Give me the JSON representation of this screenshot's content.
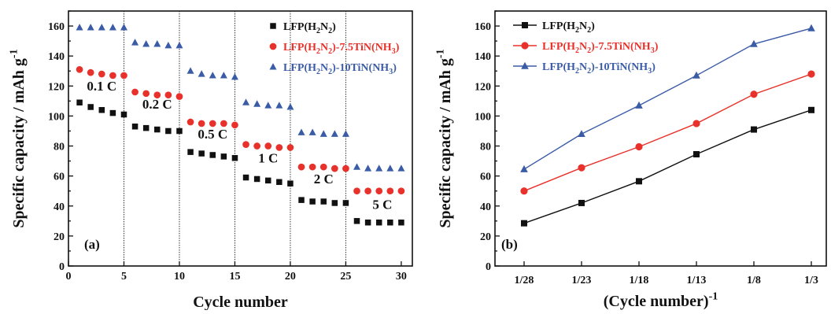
{
  "colors": {
    "black": "#111111",
    "red": "#e8312a",
    "blue": "#3a5ba6"
  },
  "chart_data": [
    {
      "type": "scatter",
      "panel_label": "(a)",
      "xlabel": "Cycle number",
      "ylabel": "Specific capacity / mAh g⁻¹",
      "xlim": [
        0,
        31
      ],
      "ylim": [
        0,
        170
      ],
      "xticks": [
        "0",
        "5",
        "10",
        "15",
        "20",
        "25",
        "30"
      ],
      "yticks": [
        "0",
        "20",
        "40",
        "60",
        "80",
        "100",
        "120",
        "140",
        "160"
      ],
      "grid": false,
      "legend_position": "top-right",
      "rate_labels": [
        "0.1 C",
        "0.2 C",
        "0.5 C",
        "1 C",
        "2 C",
        "5 C"
      ],
      "series": [
        {
          "name": "LFP(H₂N₂)",
          "marker": "square",
          "color": "#111111",
          "x": [
            1,
            2,
            3,
            4,
            5,
            6,
            7,
            8,
            9,
            10,
            11,
            12,
            13,
            14,
            15,
            16,
            17,
            18,
            19,
            20,
            21,
            22,
            23,
            24,
            25,
            26,
            27,
            28,
            29,
            30
          ],
          "y": [
            109,
            106,
            104,
            102,
            101,
            93,
            92,
            91,
            90,
            90,
            76,
            75,
            74,
            73,
            72,
            59,
            58,
            57,
            56,
            55,
            44,
            43,
            43,
            42,
            42,
            30,
            29,
            29,
            29,
            29
          ]
        },
        {
          "name": "LFP(H₂N₂)-7.5TiN(NH₃)",
          "marker": "circle",
          "color": "#e8312a",
          "x": [
            1,
            2,
            3,
            4,
            5,
            6,
            7,
            8,
            9,
            10,
            11,
            12,
            13,
            14,
            15,
            16,
            17,
            18,
            19,
            20,
            21,
            22,
            23,
            24,
            25,
            26,
            27,
            28,
            29,
            30
          ],
          "y": [
            131,
            129,
            128,
            127,
            127,
            116,
            115,
            114,
            114,
            113,
            96,
            95,
            95,
            95,
            94,
            81,
            80,
            80,
            79,
            79,
            66,
            66,
            66,
            65,
            65,
            50,
            50,
            50,
            50,
            50
          ]
        },
        {
          "name": "LFP(H₂N₂)-10TiN(NH₃)",
          "marker": "triangle",
          "color": "#3a5ba6",
          "x": [
            1,
            2,
            3,
            4,
            5,
            6,
            7,
            8,
            9,
            10,
            11,
            12,
            13,
            14,
            15,
            16,
            17,
            18,
            19,
            20,
            21,
            22,
            23,
            24,
            25,
            26,
            27,
            28,
            29,
            30
          ],
          "y": [
            159,
            159,
            159,
            159,
            159,
            149,
            148,
            148,
            147,
            147,
            130,
            128,
            127,
            127,
            126,
            109,
            108,
            107,
            107,
            106,
            89,
            89,
            88,
            88,
            88,
            66,
            65,
            65,
            65,
            65
          ]
        }
      ]
    },
    {
      "type": "line",
      "panel_label": "(b)",
      "xlabel": "(Cycle number)⁻¹",
      "ylabel": "Specific capacity / mAh g⁻¹",
      "categories": [
        "1/28",
        "1/23",
        "1/18",
        "1/13",
        "1/8",
        "1/3"
      ],
      "ylim": [
        0,
        170
      ],
      "yticks": [
        "0",
        "20",
        "40",
        "60",
        "80",
        "100",
        "120",
        "140",
        "160"
      ],
      "grid": false,
      "legend_position": "top-left",
      "series": [
        {
          "name": "LFP(H₂N₂)",
          "marker": "square",
          "color": "#111111",
          "values": [
            28.5,
            42,
            56.5,
            74.5,
            91,
            104
          ]
        },
        {
          "name": "LFP(H₂N₂)-7.5TiN(NH₃)",
          "marker": "circle",
          "color": "#e8312a",
          "values": [
            50,
            65.5,
            79.5,
            95,
            114.5,
            128
          ]
        },
        {
          "name": "LFP(H₂N₂)-10TiN(NH₃)",
          "marker": "triangle",
          "color": "#3a5ba6",
          "values": [
            64.5,
            88,
            107,
            127,
            148,
            158.5
          ]
        }
      ]
    }
  ]
}
